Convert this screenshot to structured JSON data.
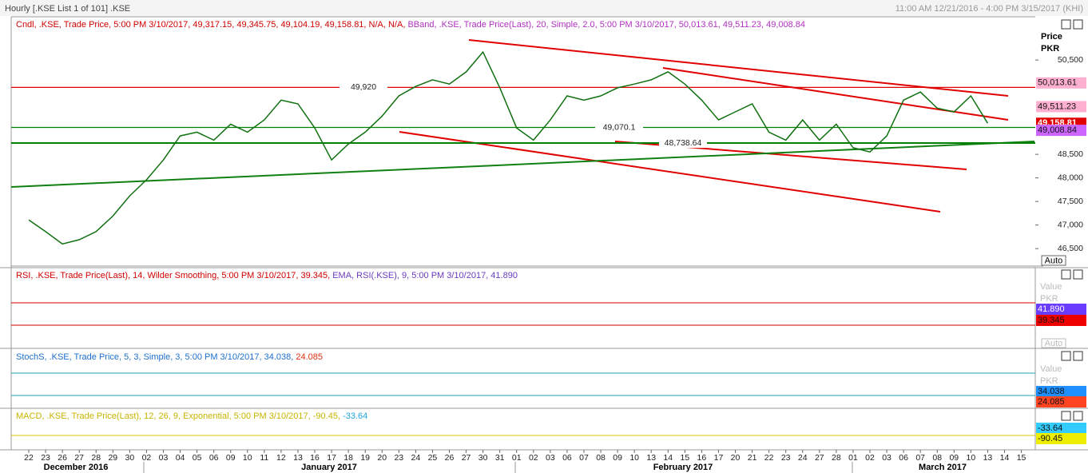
{
  "window": {
    "title": "Hourly [.KSE List 1 of 101] .KSE",
    "range": "11:00 AM 12/21/2016 - 4:00 PM 3/15/2017 (KHI)"
  },
  "price_panel": {
    "header": [
      "Cndl, .KSE, Trade Price, 5:00 PM 3/10/2017, 49,317.15, 49,345.75, 49,104.19, 49,158.81, N/A, N/A,",
      "BBand, .KSE, Trade Price(Last), 20, Simple, 2.0, 5:00 PM 3/10/2017, 50,013.61, 49,511.23, 49,008.84"
    ],
    "axis_label": "Price",
    "unit": "PKR",
    "ylim": [
      46130,
      51400
    ],
    "yticks": [
      {
        "value": 50500,
        "label": "50,500"
      },
      {
        "value": 48500,
        "label": "48,500"
      },
      {
        "value": 48000,
        "label": "48,000"
      },
      {
        "value": 47500,
        "label": "47,500"
      },
      {
        "value": 47000,
        "label": "47,000"
      },
      {
        "value": 46500,
        "label": "46,500"
      }
    ],
    "levels": [
      {
        "value": 49920,
        "label": "49,920",
        "color": "#e00000"
      },
      {
        "value": 49070.1,
        "label": "49,070.1",
        "color": "#008000"
      },
      {
        "value": 48738.64,
        "label": "48,738.64",
        "color": "#008000"
      }
    ],
    "value_boxes": [
      {
        "value": 50013.61,
        "label": "50,013.61",
        "color": "#ffb0d0"
      },
      {
        "value": 49511.23,
        "label": "49,511.23",
        "color": "#ffb0d0"
      },
      {
        "value": 49158.81,
        "label": "49,158.81",
        "color": "#e00000"
      },
      {
        "value": 49008.84,
        "label": "49,008.84",
        "color": "#cc66ff"
      }
    ],
    "close": {
      "color": "#107010",
      "values": [
        47110,
        46860,
        46600,
        46690,
        46860,
        47190,
        47620,
        47960,
        48380,
        48890,
        48970,
        48800,
        49140,
        48970,
        49230,
        49650,
        49570,
        49060,
        48380,
        48720,
        48970,
        49310,
        49740,
        49940,
        50080,
        49990,
        50250,
        50670,
        49910,
        49060,
        48800,
        49230,
        49740,
        49650,
        49740,
        49910,
        49990,
        50080,
        50250,
        49990,
        49650,
        49230,
        49400,
        49570,
        48970,
        48800,
        49230,
        48800,
        49140,
        48640,
        48550,
        48890,
        49650,
        49820,
        49480,
        49400,
        49740,
        49160,
        null,
        null
      ]
    },
    "scale_button": "Auto"
  },
  "rsi_panel": {
    "header": [
      "RSI, .KSE, Trade Price(Last), 14, Wilder Smoothing, 5:00 PM 3/10/2017, 39.345,",
      "EMA, RSI(.KSE), 9, 5:00 PM 3/10/2017, 41.890"
    ],
    "axis_label": "Value",
    "unit": "PKR",
    "value_boxes": [
      {
        "label": "41.890",
        "color": "#6a3cff"
      },
      {
        "label": "39.345",
        "color": "#ee0000"
      }
    ],
    "scale_button": "Auto"
  },
  "stoch_panel": {
    "header": [
      "StochS, .KSE, Trade Price, 5, 3, Simple, 3, 5:00 PM 3/10/2017, 34.038,",
      "24.085"
    ],
    "axis_label": "Value",
    "unit": "PKR",
    "value_boxes": [
      {
        "label": "34.038",
        "color": "#1e90ff"
      },
      {
        "label": "24.085",
        "color": "#ff4422"
      }
    ]
  },
  "macd_panel": {
    "header": [
      "MACD, .KSE, Trade Price(Last), 12, 26, 9, Exponential, 5:00 PM 3/10/2017, -90.45,",
      "-33.64"
    ],
    "value_boxes": [
      {
        "label": "-33.64",
        "color": "#33ccff"
      },
      {
        "label": "-90.45",
        "color": "#eeee00"
      }
    ]
  },
  "date_axis": {
    "days": [
      "22",
      "23",
      "26",
      "27",
      "28",
      "29",
      "30",
      "02",
      "03",
      "04",
      "05",
      "06",
      "09",
      "10",
      "11",
      "12",
      "13",
      "16",
      "17",
      "18",
      "19",
      "20",
      "23",
      "24",
      "25",
      "26",
      "27",
      "30",
      "31",
      "01",
      "02",
      "03",
      "06",
      "07",
      "08",
      "09",
      "10",
      "13",
      "14",
      "15",
      "16",
      "17",
      "20",
      "21",
      "22",
      "23",
      "24",
      "27",
      "28",
      "01",
      "02",
      "03",
      "06",
      "07",
      "08",
      "09",
      "10",
      "13",
      "14",
      "15"
    ],
    "months": [
      "December 2016",
      "January 2017",
      "February 2017",
      "March 2017"
    ]
  }
}
